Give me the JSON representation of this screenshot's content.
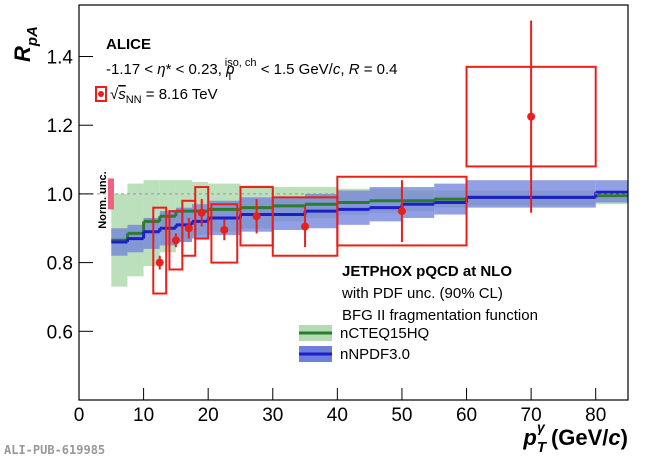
{
  "chart_data": {
    "type": "rpa",
    "y_label": {
      "main": "R",
      "sub": "pA"
    },
    "x_label": {
      "main": "p",
      "sub": "T",
      "sup": "γ",
      "unit_open": " (GeV/",
      "unit_c": "c",
      "unit_close": ")"
    },
    "xlim": [
      0,
      85
    ],
    "ylim": [
      0.4,
      1.55
    ],
    "xticks": [
      0,
      10,
      20,
      30,
      40,
      50,
      60,
      70,
      80
    ],
    "yticks": [
      0.6,
      0.8,
      {
        "value": 1,
        "label": "1.0"
      },
      1.2,
      1.4
    ],
    "reference_line": 1,
    "annotations": {
      "experiment": "ALICE",
      "cuts": [
        "-1.17 < ",
        "η",
        "* < 0.23,  ",
        "p",
        "T",
        "iso, ch",
        " < 1.5 GeV/",
        "c",
        ", ",
        "R",
        " = 0.4"
      ],
      "energy": [
        "√",
        "s",
        "NN",
        " = 8.16 TeV"
      ],
      "theory_title": "JETPHOX pQCD at NLO",
      "theory_line1": "with PDF unc. (90% CL)",
      "theory_line2": "BFG II fragmentation function",
      "publication": "ALI-PUB-619985"
    },
    "norm_unc": {
      "label": "Norm. unc.",
      "low": 0.955,
      "high": 1.045,
      "color": "#f06080"
    },
    "bin_edges": [
      5,
      7.5,
      10,
      12.5,
      15,
      17.5,
      20,
      25,
      30,
      35,
      40,
      45,
      50,
      55,
      60,
      80,
      85
    ],
    "series": [
      {
        "name": "nCTEQ15HQ",
        "color": "#2a7d2a",
        "band_color": "#b5dbb5",
        "values": [
          0.865,
          0.885,
          0.92,
          0.935,
          0.95,
          0.95,
          0.955,
          0.96,
          0.965,
          0.97,
          0.975,
          0.98,
          0.98,
          0.985,
          0.99,
          0.995
        ],
        "low": [
          0.73,
          0.76,
          0.79,
          0.83,
          0.86,
          0.88,
          0.89,
          0.9,
          0.92,
          0.93,
          0.94,
          0.945,
          0.95,
          0.96,
          0.965,
          0.97
        ],
        "high": [
          1.0,
          1.03,
          1.04,
          1.04,
          1.04,
          1.035,
          1.03,
          1.025,
          1.02,
          1.02,
          1.015,
          1.015,
          1.01,
          1.01,
          1.01,
          1.01
        ]
      },
      {
        "name": "nNPDF3.0",
        "color": "#1e1ec8",
        "band_color": "#6f7fdc",
        "values": [
          0.86,
          0.87,
          0.89,
          0.9,
          0.91,
          0.92,
          0.93,
          0.94,
          0.94,
          0.95,
          0.955,
          0.96,
          0.97,
          0.975,
          0.99,
          1.005
        ],
        "low": [
          0.82,
          0.83,
          0.84,
          0.85,
          0.86,
          0.87,
          0.88,
          0.89,
          0.895,
          0.9,
          0.91,
          0.92,
          0.93,
          0.94,
          0.96,
          0.975
        ],
        "high": [
          0.9,
          0.91,
          0.93,
          0.95,
          0.96,
          0.97,
          0.98,
          0.99,
          0.99,
          1.0,
          1.01,
          1.02,
          1.02,
          1.03,
          1.04,
          1.04
        ]
      }
    ],
    "points": {
      "color": "#e8201c",
      "x": [
        12.5,
        15,
        17,
        19,
        22.5,
        27.5,
        35,
        50,
        70
      ],
      "y": [
        0.8,
        0.865,
        0.9,
        0.945,
        0.895,
        0.935,
        0.905,
        0.95,
        1.225
      ],
      "err": [
        0.02,
        0.02,
        0.03,
        0.04,
        0.03,
        0.05,
        0.06,
        0.09,
        0.28
      ],
      "sys_low": [
        0.71,
        0.78,
        0.82,
        0.87,
        0.8,
        0.85,
        0.82,
        0.85,
        1.08
      ],
      "sys_high": [
        0.96,
        0.95,
        0.98,
        1.02,
        0.97,
        1.02,
        0.99,
        1.05,
        1.37
      ],
      "box_xlow": [
        11.5,
        14,
        16,
        18,
        20.5,
        25,
        30,
        40,
        60
      ],
      "box_xhigh": [
        13.5,
        16,
        18,
        20,
        24.5,
        30,
        40,
        60,
        80
      ]
    }
  }
}
